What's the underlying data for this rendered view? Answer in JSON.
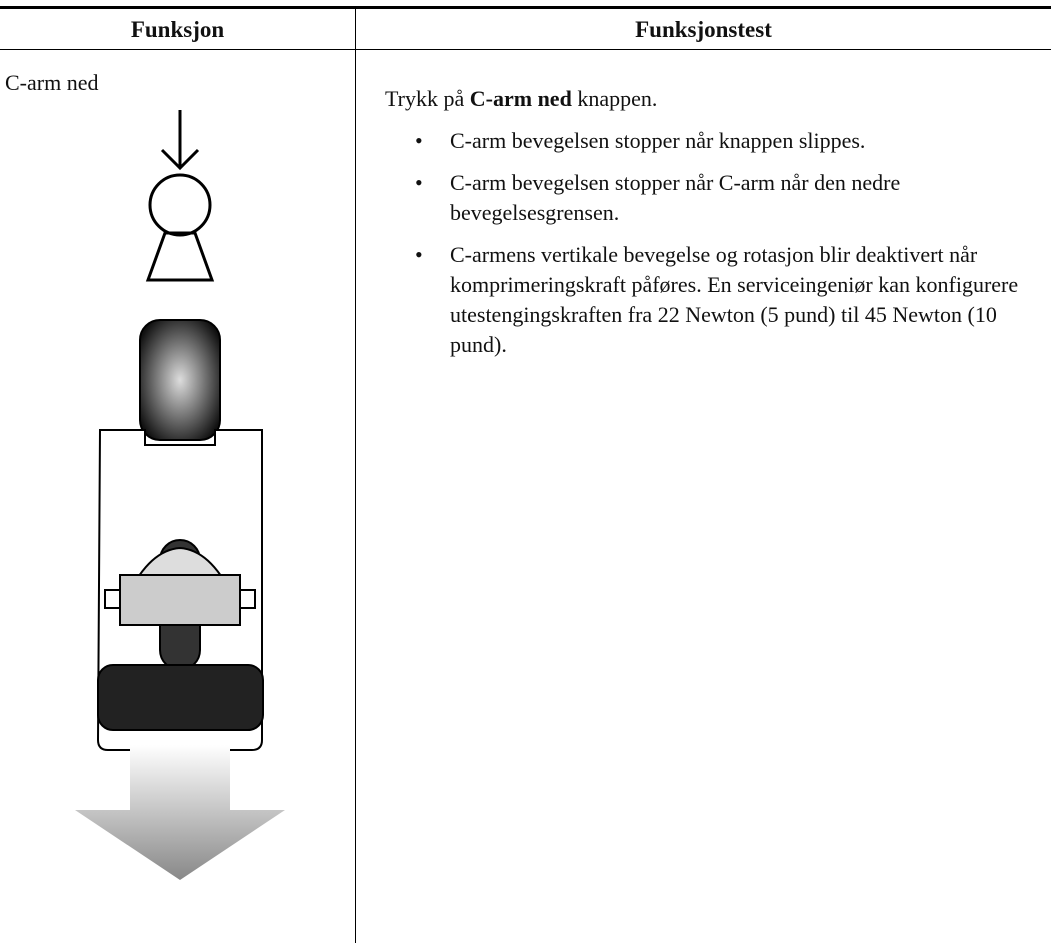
{
  "table": {
    "headers": [
      "Funksjon",
      "Funksjonstest"
    ],
    "rows": [
      {
        "function": "C-arm ned",
        "test_intro": [
          "Trykk på ",
          "C-arm ned",
          " knappen."
        ],
        "bullets": [
          "C-arm bevegelsen stopper når knappen slippes.",
          "C-arm bevegelsen stopper når C-arm når den nedre bevegelsesgrensen.",
          "C-armens vertikale bevegelse og rotasjon blir deaktivert når komprimeringskraft påføres. En serviceingeniør kan konfigurere utestengingskraften fra 22 Newton (5 pund) til 45 Newton (10 pund)."
        ]
      }
    ]
  }
}
